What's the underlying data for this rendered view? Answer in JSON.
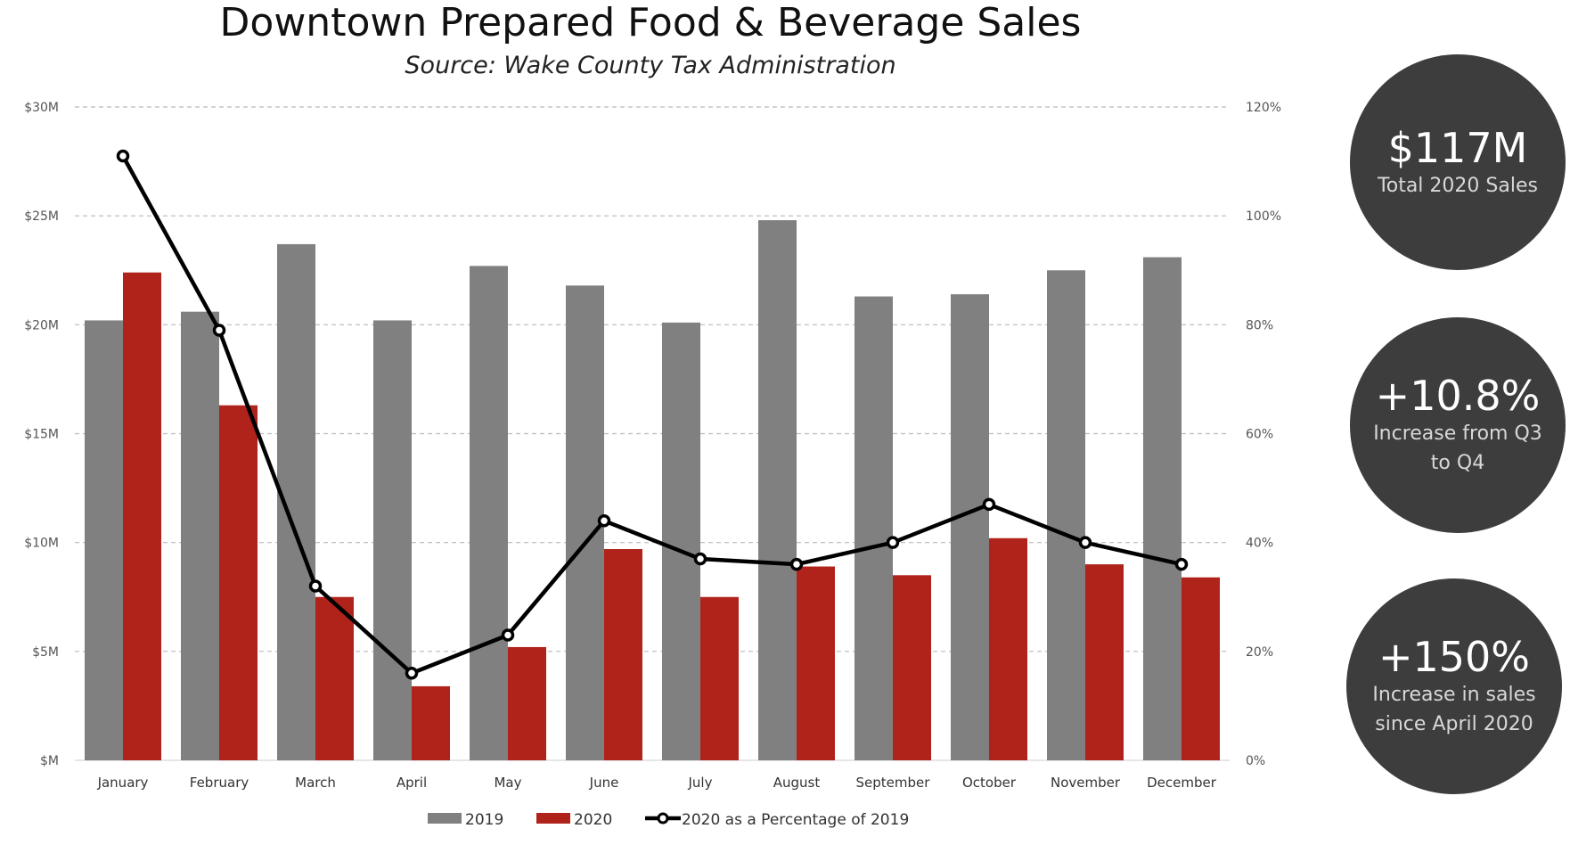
{
  "chart_data": {
    "type": "bar",
    "title": "Downtown Prepared Food & Beverage Sales",
    "subtitle": "Source: Wake County Tax Administration",
    "categories": [
      "January",
      "February",
      "March",
      "April",
      "May",
      "June",
      "July",
      "August",
      "September",
      "October",
      "November",
      "December"
    ],
    "series": [
      {
        "name": "2019",
        "type": "bar",
        "axis": "left",
        "color": "#808080",
        "values": [
          20.2,
          20.6,
          23.7,
          20.2,
          22.7,
          21.8,
          20.1,
          24.8,
          21.3,
          21.4,
          22.5,
          23.1
        ]
      },
      {
        "name": "2020",
        "type": "bar",
        "axis": "left",
        "color": "#b0231b",
        "values": [
          22.4,
          16.3,
          7.5,
          3.4,
          5.2,
          9.7,
          7.5,
          8.9,
          8.5,
          10.2,
          9.0,
          8.4
        ]
      },
      {
        "name": "2020 as a Percentage of 2019",
        "type": "line",
        "axis": "right",
        "color": "#000000",
        "values": [
          111,
          79,
          32,
          16,
          23,
          44,
          37,
          36,
          40,
          47,
          40,
          36
        ]
      }
    ],
    "ylim": [
      0,
      30
    ],
    "y_ticks": [
      "$M",
      "$5M",
      "$10M",
      "$15M",
      "$20M",
      "$25M",
      "$30M"
    ],
    "y2lim": [
      0,
      120
    ],
    "y2_ticks": [
      "0%",
      "20%",
      "40%",
      "60%",
      "80%",
      "100%",
      "120%"
    ],
    "grid": true,
    "legend_position": "bottom"
  },
  "callouts": [
    {
      "value": "$117M",
      "label": "Total 2020 Sales"
    },
    {
      "value": "+10.8%",
      "label": "Increase from Q3 to Q4"
    },
    {
      "value": "+150%",
      "label": "Increase in sales since April 2020"
    }
  ]
}
